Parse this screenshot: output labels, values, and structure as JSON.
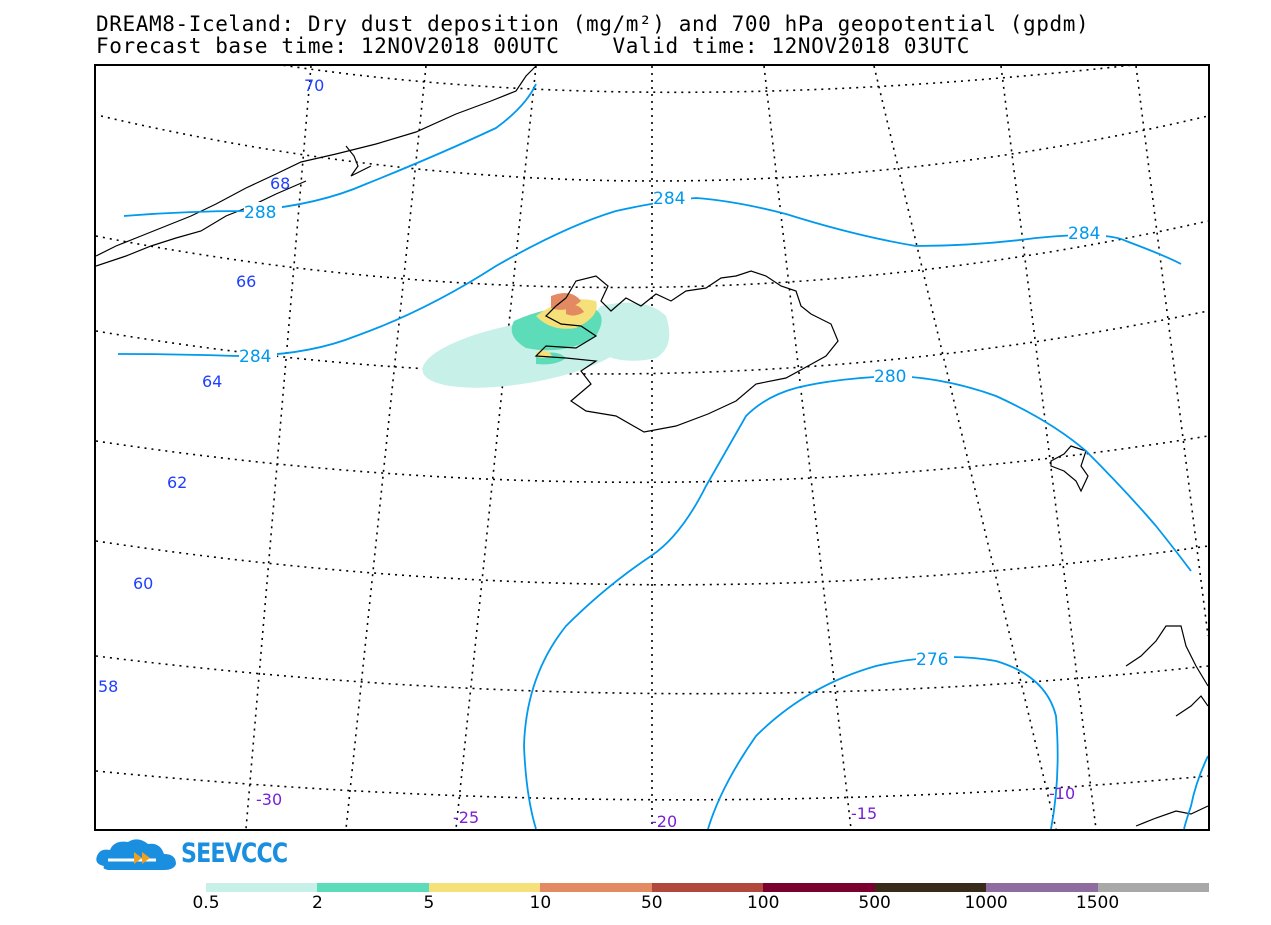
{
  "title": {
    "line1": "DREAM8-Iceland: Dry dust deposition (mg/m²) and 700 hPa geopotential (gpdm)",
    "line2": "Forecast base time: 12NOV2018 00UTC    Valid time: 12NOV2018 03UTC"
  },
  "map": {
    "latitude_labels": [
      "70",
      "68",
      "66",
      "64",
      "62",
      "60",
      "58"
    ],
    "longitude_labels": [
      "-30",
      "-25",
      "-20",
      "-15",
      "-10"
    ],
    "contour_labels": [
      "288",
      "284",
      "284",
      "284",
      "280",
      "276"
    ],
    "colors": {
      "contour": "#0099ee",
      "coastline": "#000000",
      "graticule": "#000000",
      "lat_label": "#1f3fff",
      "lon_label": "#7a1fd6"
    }
  },
  "logo": {
    "text": "SEEVCCC",
    "color": "#1a8fe0",
    "icon": "cloud-logo-icon"
  },
  "colorbar": {
    "labels": [
      "0.5",
      "2",
      "5",
      "10",
      "50",
      "100",
      "500",
      "1000",
      "1500"
    ],
    "colors": [
      "#c6f0e8",
      "#5cdcb8",
      "#f5e07a",
      "#e48a62",
      "#b0483c",
      "#7a0030",
      "#3a2a1a",
      "#8e6ca0",
      "#a8a8a8"
    ]
  }
}
